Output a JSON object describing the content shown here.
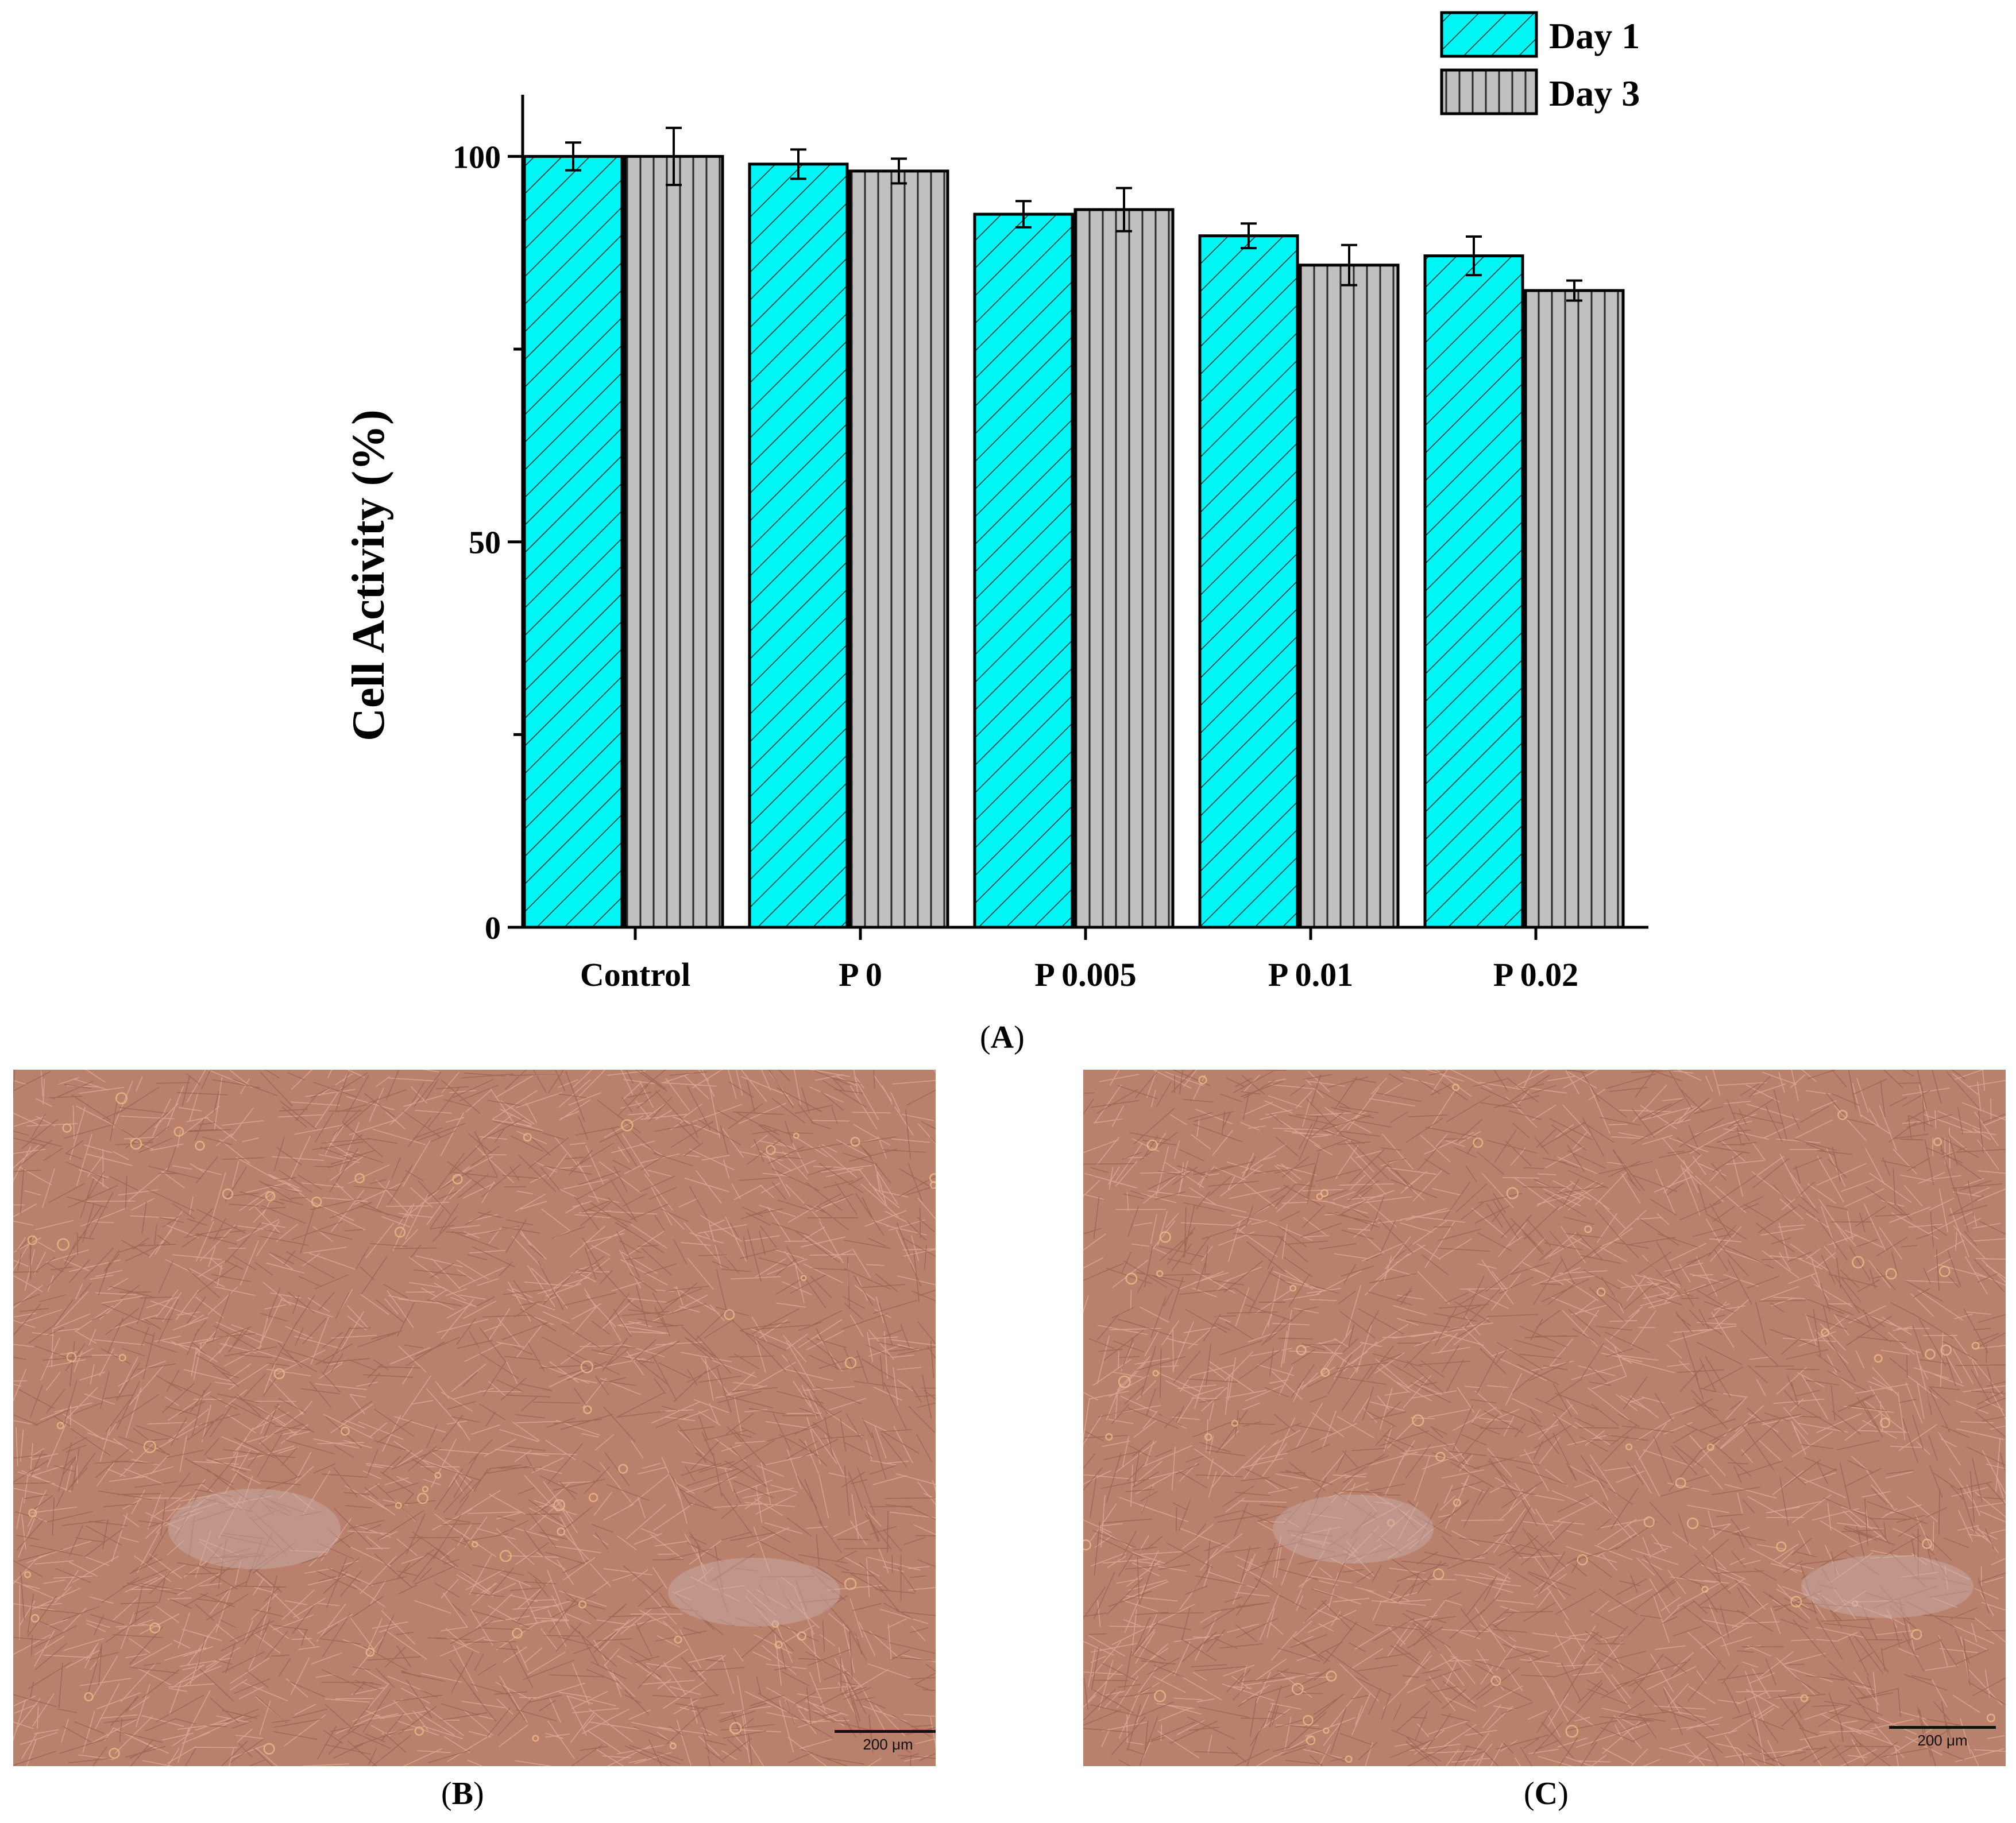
{
  "chart_data": {
    "type": "bar",
    "title": "",
    "xlabel": "",
    "ylabel": "Cell Activity (%)",
    "categories": [
      "Control",
      "P 0",
      "P 0.005",
      "P 0.01",
      "P 0.02"
    ],
    "series": [
      {
        "name": "Day 1",
        "values": [
          100,
          99,
          92.5,
          89.7,
          87.1
        ],
        "errors": [
          1.8,
          1.9,
          1.7,
          1.6,
          2.5
        ],
        "color": "#00f5f5",
        "pattern": "diagonal-hatch"
      },
      {
        "name": "Day 3",
        "values": [
          100,
          98.1,
          93.1,
          85.9,
          82.6
        ],
        "errors": [
          3.7,
          1.6,
          2.8,
          2.6,
          1.3
        ],
        "color": "#c0c0c0",
        "pattern": "vertical-lines"
      }
    ],
    "ylim": [
      0,
      108
    ],
    "yticks": [
      0,
      50,
      100
    ],
    "legend_position": "top-right",
    "grid": false
  },
  "panels": {
    "a_label": "A",
    "b_label": "B",
    "c_label": "C"
  },
  "micrographs": {
    "b_scale": "200 μm",
    "c_scale": "200 μm"
  }
}
